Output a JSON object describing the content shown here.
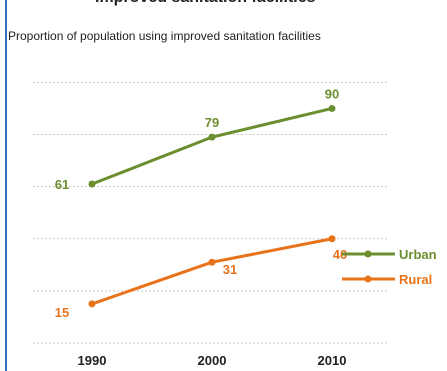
{
  "header": {
    "title_fragment": "Proportion of population using improved sanitation facilities — Urban and Rural",
    "subtitle": "Proportion of population using improved sanitation facilities"
  },
  "chart_data": {
    "type": "line",
    "title": "",
    "subtitle": "Proportion of population using improved sanitation facilities",
    "xlabel": "",
    "ylabel": "",
    "x": [
      "1990",
      "2000",
      "2010"
    ],
    "ylim": [
      0,
      100
    ],
    "grid": true,
    "legend_position": "right",
    "series": [
      {
        "name": "Urban",
        "values": [
          61,
          79,
          90
        ],
        "color": "#6b8e2f"
      },
      {
        "name": "Rural",
        "values": [
          15,
          31,
          40
        ],
        "color": "#e8731a"
      }
    ]
  }
}
